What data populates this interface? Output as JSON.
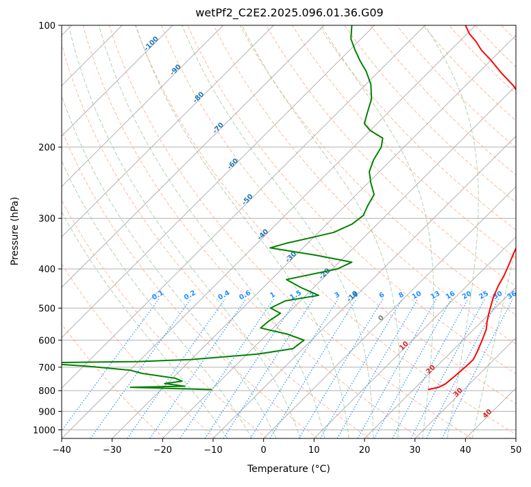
{
  "chart_data": {
    "type": "line",
    "title": "wetPf2_C2E2.2025.096.01.36.G09",
    "xlabel": "Temperature (°C)",
    "ylabel": "Pressure (hPa)",
    "xlim": [
      -40,
      50
    ],
    "ylim": [
      1050,
      100
    ],
    "y_scale": "log",
    "grid": true,
    "x_ticks": [
      -40,
      -30,
      -20,
      -10,
      0,
      10,
      20,
      30,
      40,
      50
    ],
    "y_ticks": [
      1000,
      900,
      800,
      700,
      600,
      500,
      400,
      300,
      200,
      100
    ],
    "x_tick_labels": [
      "−40",
      "−30",
      "−20",
      "−10",
      "0",
      "10",
      "20",
      "30",
      "40",
      "50"
    ],
    "y_tick_labels": [
      "1000",
      "900",
      "800",
      "700",
      "600",
      "500",
      "400",
      "300",
      "200",
      "100"
    ],
    "series": [
      {
        "key": "temperature",
        "color": "#ff0000",
        "points": [
          [
            22.9,
            795
          ],
          [
            24.5,
            785
          ],
          [
            25.2,
            770
          ],
          [
            25.5,
            740
          ],
          [
            25.8,
            700
          ],
          [
            25.9,
            670
          ],
          [
            25.1,
            640
          ],
          [
            23.8,
            600
          ],
          [
            22.5,
            565
          ],
          [
            21.1,
            540
          ],
          [
            19.8,
            515
          ],
          [
            18.8,
            495
          ],
          [
            17.5,
            470
          ],
          [
            16.2,
            440
          ],
          [
            15.3,
            415
          ],
          [
            14.1,
            390
          ],
          [
            12.8,
            366
          ],
          [
            11.7,
            345
          ],
          [
            10.4,
            323
          ],
          [
            8.1,
            295
          ],
          [
            5.2,
            262
          ],
          [
            1.3,
            229
          ],
          [
            -2.9,
            205
          ],
          [
            -7.0,
            185
          ],
          [
            -11.0,
            168
          ],
          [
            -15.5,
            154
          ],
          [
            -20.5,
            141
          ],
          [
            -25.5,
            131
          ],
          [
            -30.0,
            122
          ],
          [
            -34.0,
            115
          ],
          [
            -36.5,
            110
          ],
          [
            -39.5,
            105
          ],
          [
            -42.0,
            100
          ]
        ]
      },
      {
        "key": "dewpoint",
        "color": "#008000",
        "points": [
          [
            -20,
            795
          ],
          [
            -36.5,
            785
          ],
          [
            -26,
            780
          ],
          [
            -30.5,
            768
          ],
          [
            -27.5,
            758
          ],
          [
            -29.5,
            745
          ],
          [
            -37,
            725
          ],
          [
            -40,
            712
          ],
          [
            -50,
            695
          ],
          [
            -60,
            683
          ],
          [
            -40,
            678
          ],
          [
            -30,
            670
          ],
          [
            -18,
            650
          ],
          [
            -12,
            630
          ],
          [
            -11.5,
            600
          ],
          [
            -16,
            580
          ],
          [
            -22.5,
            560
          ],
          [
            -22.3,
            540
          ],
          [
            -21.5,
            515
          ],
          [
            -24.5,
            500
          ],
          [
            -23,
            480
          ],
          [
            -17.5,
            465
          ],
          [
            -22.5,
            445
          ],
          [
            -27,
            425
          ],
          [
            -19,
            400
          ],
          [
            -17.5,
            385
          ],
          [
            -26,
            370
          ],
          [
            -36.5,
            355
          ],
          [
            -34,
            345
          ],
          [
            -31.5,
            338
          ],
          [
            -27,
            325
          ],
          [
            -25,
            310
          ],
          [
            -24.5,
            295
          ],
          [
            -25.5,
            280
          ],
          [
            -26.5,
            262
          ],
          [
            -29.5,
            245
          ],
          [
            -32,
            230
          ],
          [
            -33.5,
            215
          ],
          [
            -34.5,
            200
          ],
          [
            -36,
            190
          ],
          [
            -40,
            182
          ],
          [
            -42.5,
            175
          ],
          [
            -44,
            165
          ],
          [
            -46,
            152
          ],
          [
            -49,
            140
          ],
          [
            -52.5,
            130
          ],
          [
            -56,
            122
          ],
          [
            -59,
            115
          ],
          [
            -62,
            108
          ],
          [
            -64.5,
            100
          ]
        ]
      }
    ],
    "dry_adiabats_K": [
      250,
      260,
      270,
      280,
      290,
      300,
      310,
      320,
      330,
      340,
      350,
      360,
      370,
      380,
      390,
      400,
      410,
      420,
      430,
      440,
      450,
      460,
      470,
      480,
      490,
      500
    ],
    "moist_adiabats_C": [
      -10,
      -5,
      0,
      5,
      10,
      15,
      20,
      25,
      30,
      35,
      40
    ],
    "mixing_ratio_lines": [
      "0.1",
      "0.2",
      "0.4",
      "0.6",
      "1",
      "1.5",
      "2",
      "3",
      "4",
      "6",
      "8",
      "10",
      "13",
      "16",
      "20",
      "25",
      "30",
      "36"
    ],
    "mixing_ratio_label_pressure": 475,
    "isotherm_labels": [
      {
        "t": -100,
        "p": 112
      },
      {
        "t": -90,
        "p": 130
      },
      {
        "t": -80,
        "p": 152
      },
      {
        "t": -70,
        "p": 181
      },
      {
        "t": -60,
        "p": 222
      },
      {
        "t": -50,
        "p": 272
      },
      {
        "t": -40,
        "p": 332
      },
      {
        "t": -30,
        "p": 377
      },
      {
        "t": -20,
        "p": 415
      },
      {
        "t": -10,
        "p": 472
      },
      {
        "t": 0,
        "p": 534
      },
      {
        "t": 10,
        "p": 625
      },
      {
        "t": 20,
        "p": 715
      },
      {
        "t": 30,
        "p": 815
      },
      {
        "t": 40,
        "p": 920
      }
    ],
    "isotherm_label_text": [
      "-100",
      "-90",
      "-80",
      "-70",
      "-60",
      "-50",
      "-40",
      "-30",
      "-20",
      "-10",
      "0",
      "10",
      "20",
      "30",
      "40"
    ],
    "colors": {
      "temperature": "#ff0000",
      "dewpoint": "#008000",
      "isotherm_grid": "#b0b0b0",
      "dry_adiabat": "#ffa07a",
      "moist_adiabat": "#8fbc8f",
      "mixing_ratio": "#1e90ff",
      "label_cold": "#1f77b4",
      "label_zero": "#7f7f7f",
      "label_warm": "#d62728"
    }
  }
}
